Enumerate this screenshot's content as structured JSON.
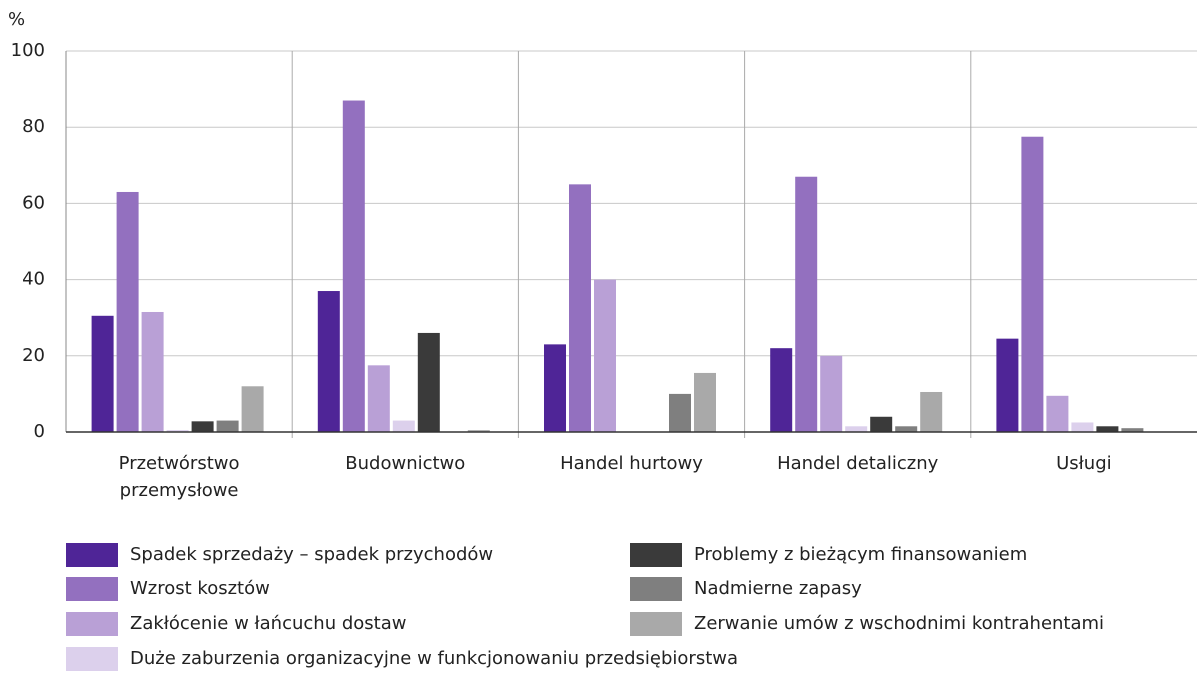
{
  "chart_data": {
    "type": "bar",
    "y_label": "%",
    "categories": [
      "Przetwórstwo przemysłowe",
      "Budownictwo",
      "Handel hurtowy",
      "Handel detaliczny",
      "Usługi"
    ],
    "series": [
      {
        "name": "Spadek sprzedaży – spadek przychodów",
        "color": "#4f2597",
        "values": [
          30.5,
          37,
          23,
          22,
          24.5
        ]
      },
      {
        "name": "Wzrost kosztów",
        "color": "#9370bf",
        "values": [
          63,
          87,
          65,
          67,
          77.5
        ]
      },
      {
        "name": "Zakłócenie w łańcuchu dostaw",
        "color": "#b9a0d6",
        "values": [
          31.5,
          17.5,
          40,
          20,
          9.5
        ]
      },
      {
        "name": "Duże zaburzenia organizacyjne w funkcjonowaniu przedsiębiorstwa",
        "color": "#dcd0ec",
        "values": [
          0.5,
          3,
          0,
          1.5,
          2.5
        ]
      },
      {
        "name": "Problemy z bieżącym finansowaniem",
        "color": "#3a3a3a",
        "values": [
          2.8,
          26,
          0,
          4,
          1.5
        ]
      },
      {
        "name": "Nadmierne zapasy",
        "color": "#7f7f7f",
        "values": [
          3,
          0,
          10,
          1.5,
          1
        ]
      },
      {
        "name": "Zerwanie umów z wschodnimi kontrahentami",
        "color": "#a9a9a9",
        "values": [
          12,
          0.5,
          15.5,
          10.5,
          0
        ]
      }
    ],
    "ylim": [
      0,
      100
    ],
    "yticks": [
      0,
      20,
      40,
      60,
      80,
      100
    ],
    "grid": true
  }
}
